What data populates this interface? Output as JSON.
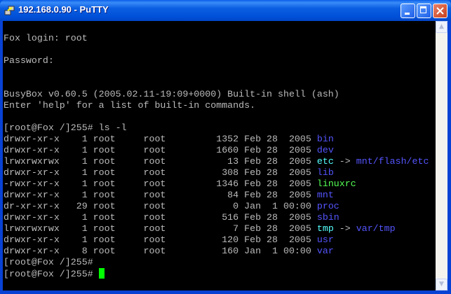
{
  "window": {
    "title": "192.168.0.90 - PuTTY"
  },
  "colors": {
    "default": "#bbbbbb",
    "dir": "#5555ff",
    "link": "#55ffff",
    "exec": "#55ff55",
    "cursor": "#00ff00"
  },
  "terminal": {
    "lines": [
      [],
      [
        {
          "t": "Fox login: root"
        }
      ],
      [],
      [
        {
          "t": "Password:"
        }
      ],
      [],
      [],
      [
        {
          "t": "BusyBox v0.60.5 (2005.02.11-19:09+0000) Built-in shell (ash)"
        }
      ],
      [
        {
          "t": "Enter 'help' for a list of built-in commands."
        }
      ],
      [],
      [
        {
          "t": "[root@Fox /]255# ls -l"
        }
      ],
      [
        {
          "t": "drwxr-xr-x    1 root     root         1352 Feb 28  2005 "
        },
        {
          "t": "bin",
          "c": "dir"
        }
      ],
      [
        {
          "t": "drwxr-xr-x    1 root     root         1660 Feb 28  2005 "
        },
        {
          "t": "dev",
          "c": "dir"
        }
      ],
      [
        {
          "t": "lrwxrwxrwx    1 root     root           13 Feb 28  2005 "
        },
        {
          "t": "etc",
          "c": "link"
        },
        {
          "t": " -> "
        },
        {
          "t": "mnt/flash/etc",
          "c": "dir"
        }
      ],
      [
        {
          "t": "drwxr-xr-x    1 root     root          308 Feb 28  2005 "
        },
        {
          "t": "lib",
          "c": "dir"
        }
      ],
      [
        {
          "t": "-rwxr-xr-x    1 root     root         1346 Feb 28  2005 "
        },
        {
          "t": "linuxrc",
          "c": "exec"
        }
      ],
      [
        {
          "t": "drwxr-xr-x    1 root     root           84 Feb 28  2005 "
        },
        {
          "t": "mnt",
          "c": "dir"
        }
      ],
      [
        {
          "t": "dr-xr-xr-x   29 root     root            0 Jan  1 00:00 "
        },
        {
          "t": "proc",
          "c": "dir"
        }
      ],
      [
        {
          "t": "drwxr-xr-x    1 root     root          516 Feb 28  2005 "
        },
        {
          "t": "sbin",
          "c": "dir"
        }
      ],
      [
        {
          "t": "lrwxrwxrwx    1 root     root            7 Feb 28  2005 "
        },
        {
          "t": "tmp",
          "c": "link"
        },
        {
          "t": " -> "
        },
        {
          "t": "var/tmp",
          "c": "dir"
        }
      ],
      [
        {
          "t": "drwxr-xr-x    1 root     root          120 Feb 28  2005 "
        },
        {
          "t": "usr",
          "c": "dir"
        }
      ],
      [
        {
          "t": "drwxr-xr-x    8 root     root          160 Jan  1 00:00 "
        },
        {
          "t": "var",
          "c": "dir"
        }
      ],
      [
        {
          "t": "[root@Fox /]255#"
        }
      ],
      [
        {
          "t": "[root@Fox /]255# "
        },
        {
          "cursor": true
        }
      ]
    ]
  }
}
